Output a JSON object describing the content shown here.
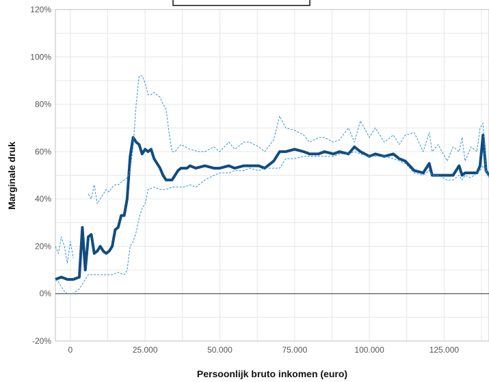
{
  "chart_data": {
    "type": "line",
    "xlabel": "Persoonlijk bruto inkomen (euro)",
    "ylabel": "Marginale druk",
    "xlim": [
      -5000,
      140000
    ],
    "ylim": [
      -20,
      120
    ],
    "x_ticks": [
      {
        "value": 0,
        "label": "0"
      },
      {
        "value": 25000,
        "label": "25.000"
      },
      {
        "value": 50000,
        "label": "50.000"
      },
      {
        "value": 75000,
        "label": "75.000"
      },
      {
        "value": 100000,
        "label": "100.000"
      },
      {
        "value": 125000,
        "label": "125.000"
      }
    ],
    "x_grid": [
      -5000,
      0,
      12500,
      25000,
      37500,
      50000,
      62500,
      75000,
      87500,
      100000,
      112500,
      125000,
      137500
    ],
    "y_ticks": [
      {
        "value": -20,
        "label": "-20%"
      },
      {
        "value": 0,
        "label": "0%"
      },
      {
        "value": 20,
        "label": "20%"
      },
      {
        "value": 40,
        "label": "40%"
      },
      {
        "value": 60,
        "label": "60%"
      },
      {
        "value": 80,
        "label": "80%"
      },
      {
        "value": 100,
        "label": "100%"
      },
      {
        "value": 120,
        "label": "120%"
      }
    ],
    "y_grid": [
      -20,
      -10,
      0,
      10,
      20,
      30,
      40,
      50,
      60,
      70,
      80,
      90,
      100,
      110,
      120
    ],
    "grid": true,
    "legend_box": true,
    "series": [
      {
        "style": "solid",
        "color": "#0f4c81",
        "x": [
          -5000,
          -3000,
          -1000,
          1000,
          3000,
          4000,
          5000,
          6000,
          7000,
          8000,
          9000,
          10000,
          11000,
          12000,
          13000,
          14000,
          15000,
          16000,
          17000,
          18000,
          19000,
          20000,
          21000,
          22000,
          23000,
          24000,
          25000,
          26000,
          27000,
          28000,
          29000,
          30000,
          31000,
          32000,
          33000,
          34000,
          35000,
          36000,
          37000,
          38000,
          39000,
          40000,
          42000,
          45000,
          48000,
          50000,
          53000,
          55000,
          58000,
          60000,
          63000,
          65000,
          68000,
          70000,
          72000,
          75000,
          78000,
          80000,
          83000,
          85000,
          88000,
          90000,
          93000,
          95000,
          97000,
          100000,
          102000,
          105000,
          108000,
          110000,
          112000,
          115000,
          118000,
          120000,
          121000,
          123000,
          126000,
          128000,
          130000,
          131000,
          132000,
          134000,
          136000,
          137000,
          138000,
          139000,
          140000
        ],
        "values": [
          6,
          7,
          6,
          6,
          7,
          28,
          10,
          24,
          25,
          17,
          18,
          20,
          18,
          17,
          18,
          20,
          27,
          28,
          33,
          33,
          40,
          58,
          66,
          64,
          63,
          59,
          61,
          60,
          61,
          57,
          55,
          53,
          50,
          48,
          48,
          48,
          50,
          52,
          53,
          53,
          53,
          54,
          53,
          54,
          53,
          53,
          54,
          53,
          54,
          54,
          54,
          53,
          56,
          60,
          60,
          61,
          60,
          59,
          59,
          60,
          59,
          60,
          59,
          62,
          60,
          58,
          59,
          58,
          59,
          57,
          56,
          52,
          51,
          55,
          50,
          50,
          50,
          50,
          54,
          50,
          51,
          51,
          51,
          54,
          67,
          52,
          50
        ]
      },
      {
        "style": "dashed",
        "color": "#2f8fd6",
        "x": [
          -5000,
          -4000,
          -3000,
          -2000,
          -1000,
          0,
          1000,
          2000,
          3000,
          4000,
          5000,
          6000,
          7000,
          8000,
          9000,
          10000,
          11000,
          12000,
          13000,
          14000,
          15000,
          16000,
          17000,
          18000,
          19000,
          20000,
          21000,
          22000,
          23000,
          24000,
          25000,
          26000,
          27000,
          28000,
          29000,
          30000,
          31000,
          32000,
          33000,
          34000,
          35000,
          37000,
          40000,
          43000,
          45000,
          48000,
          50000,
          53000,
          55000,
          58000,
          60000,
          63000,
          65000,
          68000,
          70000,
          72000,
          75000,
          78000,
          80000,
          83000,
          85000,
          88000,
          90000,
          93000,
          95000,
          97000,
          100000,
          102000,
          105000,
          108000,
          110000,
          112000,
          115000,
          118000,
          120000,
          121000,
          123000,
          126000,
          128000,
          130000,
          131000,
          132000,
          134000,
          136000,
          137000,
          138000,
          139000,
          140000
        ],
        "values": [
          20,
          17,
          24,
          20,
          13,
          22,
          15,
          null,
          null,
          null,
          null,
          42,
          40,
          46,
          38,
          40,
          42,
          44,
          43,
          45,
          46,
          46,
          47,
          48,
          49,
          52,
          62,
          80,
          92,
          92,
          89,
          84,
          84,
          85,
          84,
          83,
          80,
          78,
          68,
          60,
          60,
          63,
          61,
          60,
          60,
          62,
          60,
          64,
          61,
          64,
          64,
          62,
          60,
          65,
          75,
          70,
          69,
          67,
          64,
          66,
          66,
          64,
          65,
          70,
          64,
          73,
          66,
          70,
          64,
          67,
          63,
          67,
          68,
          60,
          68,
          60,
          63,
          56,
          62,
          60,
          66,
          56,
          62,
          60,
          70,
          72,
          52,
          51
        ]
      },
      {
        "style": "dashed",
        "color": "#2f8fd6",
        "x": [
          -5000,
          -4000,
          -3000,
          -2000,
          -1000,
          0,
          1000,
          2000,
          3000,
          4000,
          5000,
          6000,
          7000,
          8000,
          9000,
          10000,
          12000,
          14000,
          16000,
          18000,
          19000,
          20000,
          21000,
          22000,
          23000,
          24000,
          25000,
          26000,
          28000,
          30000,
          32000,
          34000,
          36000,
          38000,
          40000,
          42000,
          45000,
          48000,
          50000,
          53000,
          55000,
          58000,
          60000,
          63000,
          65000,
          68000,
          70000,
          72000,
          75000,
          78000,
          80000,
          83000,
          85000,
          88000,
          90000,
          93000,
          95000,
          97000,
          100000,
          102000,
          105000,
          108000,
          110000,
          112000,
          115000,
          118000,
          120000,
          121000,
          123000,
          126000,
          128000,
          130000,
          131000,
          132000,
          134000,
          136000,
          137000,
          138000,
          139000,
          140000
        ],
        "values": [
          6,
          5,
          3,
          1,
          0,
          0,
          0,
          1,
          2,
          4,
          6,
          8,
          8,
          8,
          8,
          8,
          8,
          8,
          9,
          8,
          10,
          20,
          22,
          26,
          32,
          36,
          38,
          44,
          45,
          44,
          44,
          45,
          45,
          45,
          46,
          45,
          48,
          50,
          51,
          51,
          52,
          52,
          53,
          52,
          53,
          53,
          53,
          57,
          57,
          58,
          58,
          58,
          58,
          58,
          59,
          59,
          60,
          59,
          58,
          58,
          58,
          57,
          56,
          55,
          51,
          50,
          52,
          50,
          50,
          48,
          48,
          50,
          48,
          50,
          49,
          51,
          52,
          54,
          52,
          49
        ]
      }
    ]
  }
}
